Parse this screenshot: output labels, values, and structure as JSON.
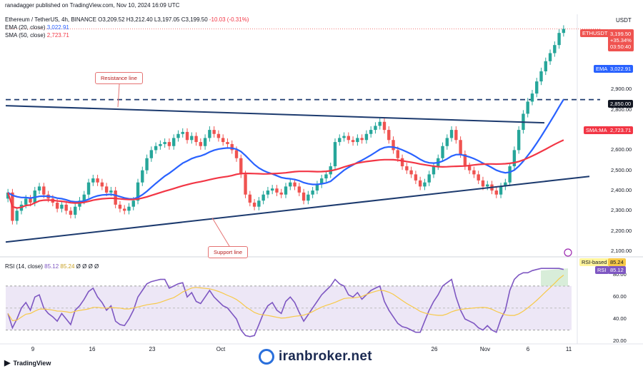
{
  "publisher": "ranadagger published on TradingView.com, Nov 10, 2024 16:09 UTC",
  "header": {
    "symbol": "Ethereum / TetherUS, 4h, BINANCE",
    "ohlc": [
      "O",
      "3,209.52",
      "H",
      "3,212.40",
      "L",
      "3,197.05",
      "C",
      "3,199.50",
      "-10.03 (-0.31%)"
    ],
    "ema_label": "EMA (20, close)",
    "ema_value": "3,022.91",
    "sma_label": "SMA (50, close)",
    "sma_value": "2,723.71",
    "rsi_label": "RSI (14, close)",
    "rsi_value1": "85.12",
    "rsi_value2": "85.24",
    "rsi_extra": "Ø Ø Ø Ø"
  },
  "price_axis": {
    "currency": "USDT",
    "ticks": [
      "3,100.00",
      "3,000.00",
      "2,900.00",
      "2,800.00",
      "2,700.00",
      "2,600.00",
      "2,500.00",
      "2,400.00",
      "2,300.00",
      "2,200.00",
      "2,100.00"
    ]
  },
  "tags": {
    "ethusdt": "ETHUSDT",
    "price": "3,199.50",
    "pct": "+35.34%",
    "countdown": "03:50:40",
    "ema": "EMA",
    "ema_value": "3,022.91",
    "level": "2,850.00",
    "smama": "SMA:MA",
    "sma_value": "2,723.71",
    "rsi_ma": "RSI-based MA",
    "rsi_ma_value": "85.24",
    "rsi": "RSI",
    "rsi_value": "85.12"
  },
  "rsi_axis": {
    "ticks": [
      "80.00",
      "60.00",
      "40.00",
      "20.00"
    ]
  },
  "x_axis": {
    "labels": [
      "9",
      "16",
      "23",
      "Oct",
      "26",
      "Nov",
      "6",
      "11"
    ]
  },
  "annotations": {
    "resistance": "Resistance line",
    "support": "Support line"
  },
  "footer": {
    "tv": "TradingView",
    "brand": "iranbroker.net"
  },
  "colors": {
    "up": "#26a69a",
    "down": "#ef5350",
    "ema": "#2962ff",
    "sma": "#f23645",
    "trend": "#1c3a6e",
    "rsi": "#7e57c2",
    "rsi_ma": "#f7c948"
  },
  "chart_data": {
    "type": "candlestick",
    "title": "Ethereum / TetherUS, 4h, BINANCE",
    "close_series": [
      2390,
      2250,
      2300,
      2330,
      2360,
      2340,
      2400,
      2420,
      2380,
      2360,
      2340,
      2310,
      2330,
      2300,
      2280,
      2320,
      2350,
      2380,
      2440,
      2460,
      2440,
      2420,
      2390,
      2400,
      2330,
      2310,
      2300,
      2320,
      2350,
      2440,
      2500,
      2560,
      2600,
      2620,
      2630,
      2640,
      2620,
      2660,
      2680,
      2690,
      2650,
      2670,
      2640,
      2620,
      2660,
      2700,
      2680,
      2660,
      2640,
      2630,
      2600,
      2560,
      2480,
      2380,
      2340,
      2320,
      2350,
      2380,
      2400,
      2410,
      2390,
      2380,
      2420,
      2440,
      2420,
      2390,
      2350,
      2380,
      2400,
      2430,
      2460,
      2480,
      2520,
      2640,
      2660,
      2670,
      2650,
      2640,
      2660,
      2650,
      2680,
      2700,
      2720,
      2740,
      2700,
      2650,
      2600,
      2560,
      2520,
      2500,
      2480,
      2450,
      2420,
      2440,
      2480,
      2520,
      2560,
      2620,
      2660,
      2700,
      2650,
      2580,
      2520,
      2500,
      2480,
      2450,
      2420,
      2430,
      2400,
      2380,
      2420,
      2440,
      2520,
      2600,
      2700,
      2780,
      2840,
      2880,
      2940,
      2990,
      3040,
      3080,
      3120,
      3180,
      3200
    ],
    "series": [
      {
        "name": "EMA (20, close)",
        "last": 3022.91
      },
      {
        "name": "SMA (50, close)",
        "last": 2723.71
      },
      {
        "name": "RSI (14, close)",
        "last": 85.12
      },
      {
        "name": "RSI-based MA",
        "last": 85.24
      }
    ],
    "horizontal_level": 2850,
    "ylim": [
      2100,
      3230
    ],
    "rsi_ylim": [
      20,
      90
    ],
    "rsi_series": [
      45,
      32,
      40,
      50,
      55,
      48,
      60,
      62,
      50,
      45,
      42,
      38,
      45,
      40,
      35,
      48,
      52,
      58,
      65,
      68,
      60,
      55,
      48,
      52,
      38,
      35,
      34,
      40,
      48,
      60,
      66,
      72,
      74,
      75,
      76,
      76,
      68,
      70,
      72,
      73,
      60,
      64,
      56,
      54,
      60,
      66,
      60,
      56,
      52,
      50,
      45,
      40,
      30,
      25,
      24,
      25,
      35,
      45,
      52,
      55,
      48,
      45,
      56,
      60,
      55,
      46,
      38,
      44,
      50,
      56,
      62,
      66,
      70,
      76,
      72,
      70,
      62,
      60,
      64,
      58,
      62,
      66,
      68,
      70,
      56,
      48,
      42,
      36,
      33,
      32,
      30,
      28,
      28,
      38,
      48,
      56,
      62,
      70,
      73,
      76,
      60,
      48,
      40,
      38,
      36,
      32,
      30,
      34,
      30,
      28,
      40,
      48,
      66,
      76,
      80,
      82,
      82,
      84,
      85,
      86,
      86,
      86,
      86,
      86,
      85
    ]
  }
}
